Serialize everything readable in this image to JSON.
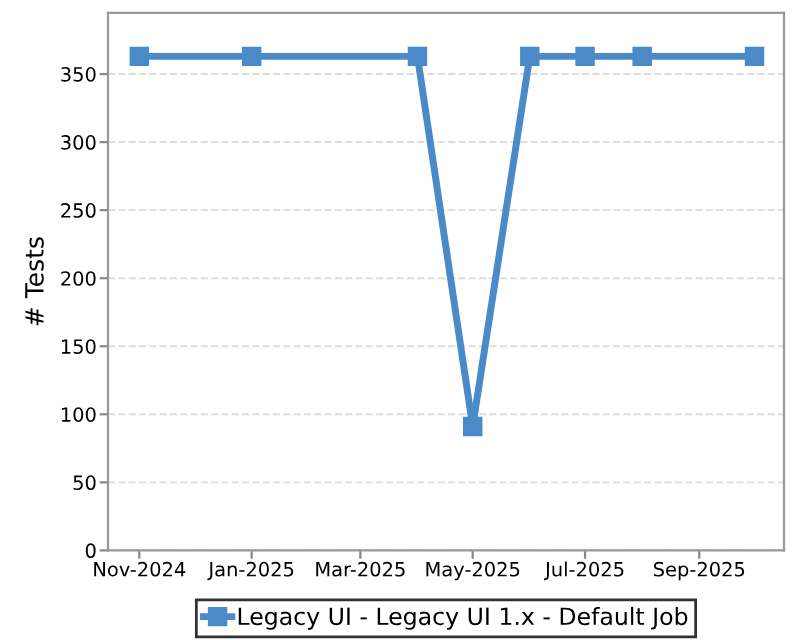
{
  "chart_data": {
    "type": "line",
    "ylabel": "# Tests",
    "x": [
      "2024-11-01",
      "2025-01-01",
      "2025-04-01",
      "2025-05-01",
      "2025-06-01",
      "2025-07-01",
      "2025-08-01",
      "2025-10-01"
    ],
    "series": [
      {
        "name": "Legacy UI - Legacy UI 1.x - Default Job",
        "color": "#4a8ac9",
        "values": [
          363,
          363,
          363,
          91,
          363,
          363,
          363,
          363
        ]
      }
    ],
    "xlim": [
      "2024-10-15",
      "2025-10-17"
    ],
    "xticks": [
      {
        "value": "2024-11-01",
        "label": "Nov-2024"
      },
      {
        "value": "2025-01-01",
        "label": "Jan-2025"
      },
      {
        "value": "2025-03-01",
        "label": "Mar-2025"
      },
      {
        "value": "2025-05-01",
        "label": "May-2025"
      },
      {
        "value": "2025-07-01",
        "label": "Jul-2025"
      },
      {
        "value": "2025-09-01",
        "label": "Sep-2025"
      }
    ],
    "ylim": [
      0,
      395
    ],
    "yticks": [
      0,
      50,
      100,
      150,
      200,
      250,
      300,
      350
    ],
    "grid": "y",
    "legend": "bottom",
    "marker": "square",
    "line_style": "solid"
  }
}
